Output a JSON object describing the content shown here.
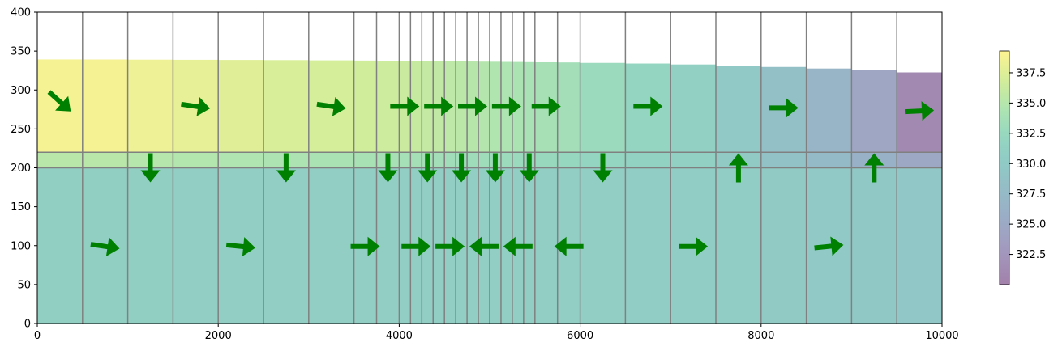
{
  "chart_data": {
    "type": "heatmap",
    "title": "",
    "xlabel": "",
    "ylabel": "",
    "xlim": [
      0,
      10000
    ],
    "ylim": [
      0,
      400
    ],
    "x_ticks": [
      0,
      2000,
      4000,
      6000,
      8000,
      10000
    ],
    "x_tick_labels": [
      "0",
      "2000",
      "4000",
      "6000",
      "8000",
      "10000"
    ],
    "y_ticks": [
      0,
      50,
      100,
      150,
      200,
      250,
      300,
      350,
      400
    ],
    "y_tick_labels": [
      "0",
      "50",
      "100",
      "150",
      "200",
      "250",
      "300",
      "350",
      "400"
    ],
    "grid": false,
    "colormap": "viridis",
    "colormap_alpha": 0.5,
    "colorbar": {
      "placement": "right",
      "vmin": 320.0,
      "vmax": 339.3,
      "ticks": [
        322.5,
        325.0,
        327.5,
        330.0,
        332.5,
        335.0,
        337.5
      ],
      "tick_labels": [
        "322.5",
        "325.0",
        "327.5",
        "330.0",
        "332.5",
        "335.0",
        "337.5"
      ]
    },
    "column_edges": [
      0,
      500,
      1000,
      1500,
      2000,
      2500,
      3000,
      3500,
      3750,
      4000,
      4125,
      4250,
      4375,
      4500,
      4625,
      4750,
      4875,
      5000,
      5125,
      5250,
      5375,
      5500,
      5750,
      6000,
      6500,
      7000,
      7500,
      8000,
      8500,
      9000,
      9500,
      10000
    ],
    "upper_layer": {
      "bottom": 220,
      "top_heads": [
        339.3,
        339.2,
        339.0,
        338.8,
        338.6,
        338.4,
        338.1,
        337.8,
        337.6,
        337.4,
        337.3,
        337.1,
        337.0,
        336.9,
        336.7,
        336.6,
        336.4,
        336.3,
        336.1,
        336.0,
        335.8,
        335.6,
        335.4,
        334.8,
        334.0,
        332.8,
        331.4,
        329.6,
        327.6,
        325.2,
        322.6
      ],
      "values": [
        338.8,
        338.8,
        338.4,
        338.0,
        337.6,
        337.2,
        337.0,
        336.7,
        336.5,
        336.3,
        336.1,
        335.9,
        335.7,
        335.5,
        335.3,
        335.1,
        334.9,
        334.7,
        334.5,
        334.3,
        334.1,
        333.9,
        333.5,
        332.8,
        332.0,
        331.0,
        329.8,
        328.4,
        326.8,
        324.5,
        321.0
      ]
    },
    "confining_layer": {
      "bottom": 200,
      "top": 220,
      "values": [
        335.2,
        335.2,
        335.0,
        334.8,
        334.6,
        334.4,
        334.2,
        334.0,
        333.9,
        333.8,
        333.7,
        333.6,
        333.5,
        333.4,
        333.3,
        333.2,
        333.1,
        333.0,
        332.9,
        332.8,
        332.7,
        332.6,
        332.4,
        332.0,
        331.5,
        331.0,
        330.0,
        328.8,
        327.6,
        326.2,
        324.8
      ]
    },
    "lower_layer": {
      "bottom": 0,
      "top": 200,
      "values": [
        330.9,
        330.9,
        330.9,
        330.8,
        330.8,
        330.8,
        330.8,
        330.8,
        330.8,
        330.8,
        330.8,
        330.8,
        330.8,
        330.8,
        330.8,
        330.8,
        330.8,
        330.8,
        330.8,
        330.8,
        330.8,
        330.8,
        330.8,
        330.7,
        330.6,
        330.5,
        330.3,
        330.1,
        329.9,
        329.7,
        329.5
      ]
    },
    "arrow_color": "#008000",
    "arrows": [
      {
        "x": 250,
        "y": 285,
        "dx": 1,
        "dy": -0.9
      },
      {
        "x": 750,
        "y": 99,
        "dx": 1,
        "dy": -0.15
      },
      {
        "x": 1250,
        "y": 200,
        "dx": 0,
        "dy": -1
      },
      {
        "x": 1750,
        "y": 279,
        "dx": 1,
        "dy": -0.15
      },
      {
        "x": 2250,
        "y": 99,
        "dx": 1,
        "dy": -0.1
      },
      {
        "x": 2750,
        "y": 200,
        "dx": 0,
        "dy": -1
      },
      {
        "x": 3250,
        "y": 279,
        "dx": 1,
        "dy": -0.15
      },
      {
        "x": 3625,
        "y": 99,
        "dx": 1,
        "dy": 0
      },
      {
        "x": 3875,
        "y": 200,
        "dx": 0,
        "dy": -1
      },
      {
        "x": 4062,
        "y": 279,
        "dx": 1,
        "dy": 0
      },
      {
        "x": 4187,
        "y": 99,
        "dx": 1,
        "dy": 0
      },
      {
        "x": 4312,
        "y": 200,
        "dx": 0,
        "dy": -1
      },
      {
        "x": 4437,
        "y": 279,
        "dx": 1,
        "dy": 0
      },
      {
        "x": 4562,
        "y": 99,
        "dx": 1,
        "dy": 0
      },
      {
        "x": 4687,
        "y": 200,
        "dx": 0,
        "dy": -1
      },
      {
        "x": 4812,
        "y": 279,
        "dx": 1,
        "dy": 0
      },
      {
        "x": 4937,
        "y": 99,
        "dx": -1,
        "dy": 0
      },
      {
        "x": 5062,
        "y": 200,
        "dx": 0,
        "dy": -1
      },
      {
        "x": 5187,
        "y": 279,
        "dx": 1,
        "dy": 0
      },
      {
        "x": 5312,
        "y": 99,
        "dx": -1,
        "dy": 0
      },
      {
        "x": 5437,
        "y": 200,
        "dx": 0,
        "dy": -1
      },
      {
        "x": 5625,
        "y": 279,
        "dx": 1,
        "dy": 0
      },
      {
        "x": 5875,
        "y": 99,
        "dx": -1,
        "dy": 0
      },
      {
        "x": 6250,
        "y": 200,
        "dx": 0,
        "dy": -1
      },
      {
        "x": 6750,
        "y": 279,
        "dx": 1,
        "dy": 0
      },
      {
        "x": 7250,
        "y": 99,
        "dx": 1,
        "dy": 0
      },
      {
        "x": 7750,
        "y": 200,
        "dx": 0,
        "dy": 1
      },
      {
        "x": 8250,
        "y": 277,
        "dx": 1,
        "dy": 0
      },
      {
        "x": 8750,
        "y": 99,
        "dx": 1,
        "dy": 0.1
      },
      {
        "x": 9250,
        "y": 200,
        "dx": 0,
        "dy": 1
      },
      {
        "x": 9750,
        "y": 273,
        "dx": 1,
        "dy": 0.05
      }
    ]
  }
}
